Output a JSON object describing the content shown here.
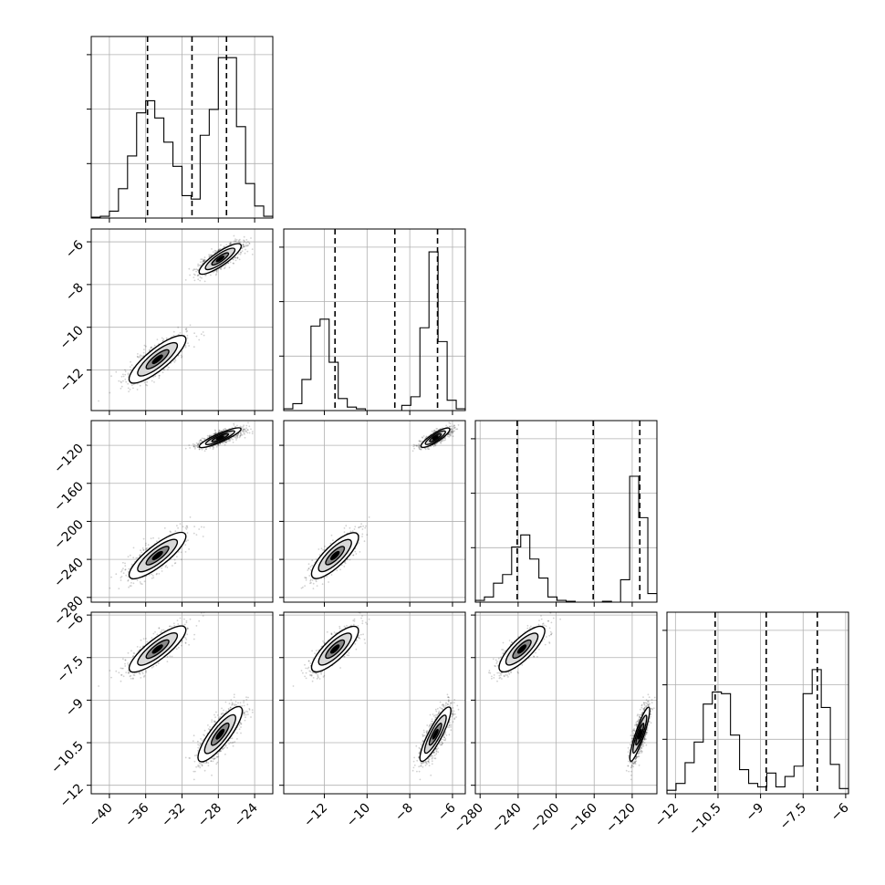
{
  "chart_data": {
    "type": "corner",
    "parameters": [
      {
        "range": [
          -42,
          -22
        ],
        "ticks": [
          -40,
          -36,
          -32,
          -28,
          -24
        ],
        "quantiles": [
          -35.8,
          -30.9,
          -27.1
        ]
      },
      {
        "range": [
          -13.9,
          -5.4
        ],
        "ticks": [
          -12,
          -10,
          -8,
          -6
        ],
        "quantiles": [
          -11.5,
          -8.7,
          -6.7
        ]
      },
      {
        "range": [
          -285,
          -94
        ],
        "ticks": [
          -280,
          -240,
          -200,
          -160,
          -120
        ],
        "quantiles": [
          -241,
          -161,
          -112
        ]
      },
      {
        "range": [
          -12.3,
          -5.9
        ],
        "ticks": [
          -12.0,
          -10.5,
          -9.0,
          -7.5,
          -6.0
        ],
        "quantiles": [
          -10.6,
          -8.8,
          -7.0
        ]
      }
    ],
    "histograms": [
      {
        "counts": [
          0.005,
          0.01,
          0.04,
          0.17,
          0.36,
          0.61,
          0.68,
          0.58,
          0.44,
          0.3,
          0.13,
          0.11,
          0.48,
          0.63,
          0.93,
          0.93,
          0.53,
          0.2,
          0.07,
          0.01
        ]
      },
      {
        "counts": [
          0.01,
          0.04,
          0.18,
          0.49,
          0.53,
          0.28,
          0.07,
          0.02,
          0.01,
          0,
          0,
          0,
          0,
          0.03,
          0.08,
          0.48,
          0.92,
          0.4,
          0.06,
          0.01
        ]
      },
      {
        "counts": [
          0.01,
          0.03,
          0.11,
          0.16,
          0.32,
          0.39,
          0.25,
          0.14,
          0.03,
          0.01,
          0.005,
          0,
          0,
          0,
          0.005,
          0,
          0.13,
          0.73,
          0.49,
          0.05
        ]
      },
      {
        "counts": [
          0.02,
          0.06,
          0.18,
          0.3,
          0.52,
          0.59,
          0.58,
          0.34,
          0.14,
          0.06,
          0.04,
          0.12,
          0.04,
          0.1,
          0.16,
          0.58,
          0.72,
          0.5,
          0.17,
          0.03
        ]
      }
    ],
    "clusters": [
      {
        "means": [
          -34.7,
          -11.5,
          -236,
          -7.2
        ],
        "sd": [
          1.6,
          0.55,
          12,
          0.4
        ],
        "weight": 0.45
      },
      {
        "means": [
          -27.8,
          -6.8,
          -112,
          -10.2
        ],
        "sd": [
          1.2,
          0.35,
          5,
          0.5
        ],
        "weight": 0.55
      }
    ],
    "title": "",
    "xlabel": "",
    "ylabel": ""
  }
}
